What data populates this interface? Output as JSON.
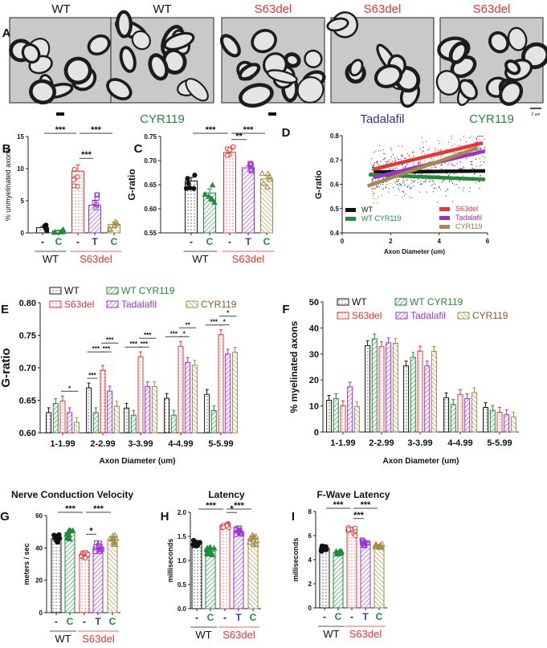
{
  "colors": {
    "WT": "#111111",
    "WT CYR119": "#1e8c3a",
    "S63del": "#ee3333",
    "Tadalafil": "#9b30d9",
    "CYR119": "#a38b45",
    "T": "#3a3ac0"
  },
  "panel_a": {
    "letter": "A",
    "top_labels": [
      "WT",
      "WT",
      "S63del",
      "S63del",
      "S63del"
    ],
    "bottom_labels": [
      "-",
      "CYR119",
      "-",
      "Tadalafil",
      "CYR119"
    ],
    "scale_bar": "2 um"
  },
  "chart_data": [
    {
      "id": "B",
      "letter": "B",
      "type": "bar",
      "title": "",
      "ylabel": "% unmyelinated axons",
      "ylim": [
        0,
        15
      ],
      "yticks": [
        "0",
        "5",
        "10",
        "15"
      ],
      "ytick_values": [
        0,
        5,
        10,
        15
      ],
      "categories": [
        "-",
        "C",
        "-",
        "T",
        "C"
      ],
      "groups": [
        {
          "label": "WT",
          "span": [
            0,
            1
          ]
        },
        {
          "label": "S63del",
          "span": [
            2,
            4
          ]
        }
      ],
      "values": [
        0.8,
        0.3,
        9.6,
        4.3,
        1.3
      ],
      "sem": [
        0.2,
        0.1,
        1.0,
        0.7,
        0.4
      ],
      "significance": [
        {
          "a": 0,
          "b": 2,
          "text": "***",
          "row": 0
        },
        {
          "a": 2,
          "b": 4,
          "text": "***",
          "row": 0
        },
        {
          "a": 2,
          "b": 3,
          "text": "***",
          "row": 1
        }
      ]
    },
    {
      "id": "C",
      "letter": "C",
      "type": "bar",
      "title": "",
      "ylabel": "G-ratio",
      "ylim": [
        0.55,
        0.75
      ],
      "yticks": [
        "0.55",
        "0.60",
        "0.65",
        "0.70",
        "0.75"
      ],
      "ytick_values": [
        0.55,
        0.6,
        0.65,
        0.7,
        0.75
      ],
      "categories": [
        "-",
        "C",
        "-",
        "T",
        "C"
      ],
      "groups": [
        {
          "label": "WT",
          "span": [
            0,
            1
          ]
        },
        {
          "label": "S63del",
          "span": [
            2,
            4
          ]
        }
      ],
      "values": [
        0.658,
        0.633,
        0.717,
        0.685,
        0.662
      ],
      "sem": [
        0.007,
        0.008,
        0.006,
        0.004,
        0.007
      ],
      "significance": [
        {
          "a": 0,
          "b": 2,
          "text": "***",
          "row": 0
        },
        {
          "a": 2,
          "b": 4,
          "text": "***",
          "row": 0
        },
        {
          "a": 2,
          "b": 3,
          "text": "**",
          "row": 1
        }
      ]
    },
    {
      "id": "D",
      "letter": "D",
      "type": "scatter",
      "ylabel": "G-ratio",
      "xlabel": "Axon Diameter (um)",
      "xlim": [
        0,
        6
      ],
      "ylim": [
        0.4,
        0.8
      ],
      "xticks": [
        "0",
        "2",
        "4",
        "6"
      ],
      "xtick_values": [
        0,
        2,
        4,
        6
      ],
      "yticks": [
        "0.4",
        "0.5",
        "0.6",
        "0.7",
        "0.8"
      ],
      "ytick_values": [
        0.4,
        0.5,
        0.6,
        0.7,
        0.8
      ],
      "series": [
        {
          "name": "WT",
          "fit": [
            [
              1.3,
              0.65
            ],
            [
              5.9,
              0.655
            ]
          ]
        },
        {
          "name": "WT CYR119",
          "fit": [
            [
              1.1,
              0.64
            ],
            [
              5.9,
              0.62
            ]
          ]
        },
        {
          "name": "S63del",
          "fit": [
            [
              1.3,
              0.662
            ],
            [
              5.8,
              0.77
            ]
          ]
        },
        {
          "name": "Tadalafil",
          "fit": [
            [
              1.3,
              0.628
            ],
            [
              5.9,
              0.737
            ]
          ]
        },
        {
          "name": "CYR119",
          "fit": [
            [
              1.05,
              0.593
            ],
            [
              5.6,
              0.75
            ]
          ]
        }
      ]
    },
    {
      "id": "E",
      "letter": "E",
      "type": "bar",
      "ylabel": "G-ratio",
      "xlabel": "Axon Diameter (um)",
      "ylim": [
        0.6,
        0.8
      ],
      "yticks": [
        "0.60",
        "0.65",
        "0.70",
        "0.75",
        "0.80"
      ],
      "ytick_values": [
        0.6,
        0.65,
        0.7,
        0.75,
        0.8
      ],
      "categories": [
        "1-1.99",
        "2-2.99",
        "3-3.99",
        "4-4.99",
        "5-5.99"
      ],
      "series_names": [
        "WT",
        "WT CYR119",
        "S63del",
        "Tadalafil",
        "CYR119"
      ],
      "values": [
        [
          0.631,
          0.645,
          0.649,
          0.631,
          0.616
        ],
        [
          0.669,
          0.631,
          0.696,
          0.664,
          0.641
        ],
        [
          0.638,
          0.627,
          0.717,
          0.671,
          0.671
        ],
        [
          0.653,
          0.627,
          0.733,
          0.708,
          0.704
        ],
        [
          0.659,
          0.634,
          0.751,
          0.721,
          0.724
        ]
      ],
      "significance": [
        [
          {
            "a": 2,
            "b": 4,
            "text": "*",
            "row": 0
          }
        ],
        [
          {
            "a": 0,
            "b": 1,
            "text": "***",
            "row": 0
          },
          {
            "a": 0,
            "b": 2,
            "text": "***",
            "row": 1
          },
          {
            "a": 2,
            "b": 3,
            "text": "***",
            "row": 1
          },
          {
            "a": 2,
            "b": 4,
            "text": "***",
            "row": 2
          }
        ],
        [
          {
            "a": 0,
            "b": 2,
            "text": "***",
            "row": 0
          },
          {
            "a": 2,
            "b": 3,
            "text": "***",
            "row": 0
          },
          {
            "a": 2,
            "b": 4,
            "text": "***",
            "row": 1
          }
        ],
        [
          {
            "a": 0,
            "b": 2,
            "text": "***",
            "row": 0
          },
          {
            "a": 2,
            "b": 3,
            "text": "*",
            "row": 0
          },
          {
            "a": 2,
            "b": 4,
            "text": "**",
            "row": 1
          }
        ],
        [
          {
            "a": 0,
            "b": 2,
            "text": "***",
            "row": 0
          },
          {
            "a": 2,
            "b": 3,
            "text": "*",
            "row": 0
          },
          {
            "a": 2,
            "b": 4,
            "text": "*",
            "row": 1
          }
        ]
      ]
    },
    {
      "id": "F",
      "letter": "F",
      "type": "bar",
      "ylabel": "% myelinated axons",
      "xlabel": "Axon Diameter (um)",
      "ylim": [
        0,
        50
      ],
      "yticks": [
        "0",
        "10",
        "20",
        "30",
        "40",
        "50"
      ],
      "ytick_values": [
        0,
        10,
        20,
        30,
        40,
        50
      ],
      "categories": [
        "1-1.99",
        "2-2.99",
        "3-3.99",
        "4-4.99",
        "5-5.99"
      ],
      "series_names": [
        "WT",
        "WT CYR119",
        "S63del",
        "Tadalafil",
        "CYR119"
      ],
      "values": [
        [
          12.2,
          12.8,
          10.1,
          17.3,
          9.8
        ],
        [
          33.2,
          35.8,
          32.8,
          34.3,
          34.1
        ],
        [
          25.4,
          28.7,
          31.1,
          25.4,
          31.0
        ],
        [
          13.2,
          10.6,
          14.4,
          12.8,
          15.1
        ],
        [
          9.4,
          8.3,
          7.6,
          6.7,
          5.8
        ]
      ],
      "significance": []
    },
    {
      "id": "G",
      "letter": "G",
      "type": "bar",
      "title": "Nerve Conduction Velocity",
      "ylabel": "meters / sec",
      "ylim": [
        0,
        60
      ],
      "yticks": [
        "0",
        "20",
        "40",
        "60"
      ],
      "ytick_values": [
        0,
        20,
        40,
        60
      ],
      "categories": [
        "-",
        "C",
        "-",
        "T",
        "C"
      ],
      "groups": [
        {
          "label": "WT",
          "span": [
            0,
            1
          ]
        },
        {
          "label": "S63del",
          "span": [
            2,
            4
          ]
        }
      ],
      "values": [
        45.5,
        49.5,
        35.5,
        40.5,
        45.0
      ],
      "sem": [
        1.5,
        1.8,
        0.9,
        1.2,
        1.2
      ],
      "significance": [
        {
          "a": 0,
          "b": 2,
          "text": "***",
          "row": 0
        },
        {
          "a": 2,
          "b": 4,
          "text": "***",
          "row": 0
        },
        {
          "a": 2,
          "b": 3,
          "text": "*",
          "row": 1
        }
      ]
    },
    {
      "id": "H",
      "letter": "H",
      "type": "bar",
      "title": "Latency",
      "ylabel": "milliseconds",
      "ylim": [
        0,
        2
      ],
      "yticks": [
        "0.0",
        "0.5",
        "1.0",
        "1.5",
        "2.0"
      ],
      "ytick_values": [
        0,
        0.5,
        1,
        1.5,
        2
      ],
      "categories": [
        "-",
        "C",
        "-",
        "T",
        "C"
      ],
      "groups": [
        {
          "label": "WT",
          "span": [
            0,
            1
          ]
        },
        {
          "label": "S63del",
          "span": [
            2,
            4
          ]
        }
      ],
      "values": [
        1.35,
        1.19,
        1.73,
        1.6,
        1.45
      ],
      "sem": [
        0.04,
        0.04,
        0.02,
        0.03,
        0.05
      ],
      "significance": [
        {
          "a": 0,
          "b": 2,
          "text": "***",
          "row": 0
        },
        {
          "a": 2,
          "b": 4,
          "text": "***",
          "row": 0
        },
        {
          "a": 2,
          "b": 3,
          "text": "*",
          "row": 1
        }
      ]
    },
    {
      "id": "I",
      "letter": "I",
      "type": "bar",
      "title": "F-Wave Latency",
      "ylabel": "milliseconds",
      "ylim": [
        0,
        8
      ],
      "yticks": [
        "0",
        "2",
        "4",
        "6",
        "8"
      ],
      "ytick_values": [
        0,
        2,
        4,
        6,
        8
      ],
      "categories": [
        "-",
        "C",
        "-",
        "T",
        "C"
      ],
      "groups": [
        {
          "label": "WT",
          "span": [
            0,
            1
          ]
        },
        {
          "label": "S63del",
          "span": [
            2,
            4
          ]
        }
      ],
      "values": [
        4.95,
        4.55,
        6.35,
        5.45,
        5.15
      ],
      "sem": [
        0.1,
        0.06,
        0.15,
        0.12,
        0.07
      ],
      "significance": [
        {
          "a": 0,
          "b": 2,
          "text": "***",
          "row": 0
        },
        {
          "a": 2,
          "b": 4,
          "text": "***",
          "row": 0
        },
        {
          "a": 2,
          "b": 3,
          "text": "***",
          "row": 1
        }
      ]
    }
  ]
}
